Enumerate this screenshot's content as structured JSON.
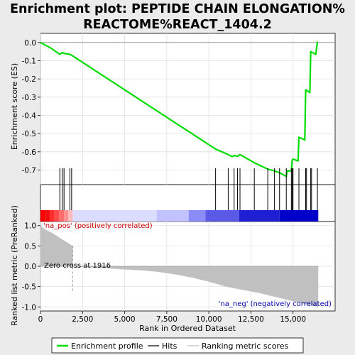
{
  "title_line1": "Enrichment plot: PEPTIDE CHAIN ELONGATION%",
  "title_line2": "REACTOME%REACT_1404.2",
  "chart_data": {
    "type": "line",
    "xlabel": "Rank in Ordered Dataset",
    "top_ylabel": "Enrichment score (ES)",
    "bottom_ylabel": "Ranked list metric (PreRanked)",
    "xlim": [
      0,
      17500
    ],
    "x_ticks": [
      0,
      2500,
      5000,
      7500,
      10000,
      12500,
      15000
    ],
    "x_tick_labels": [
      "0",
      "2,500",
      "5,000",
      "7,500",
      "10,000",
      "12,500",
      "15,000"
    ],
    "es_ylim": [
      -0.78,
      0.05
    ],
    "es_ticks": [
      0.0,
      -0.1,
      -0.2,
      -0.3,
      -0.4,
      -0.5,
      -0.6,
      -0.7
    ],
    "es_tick_labels": [
      "0.0",
      "-0.1",
      "-0.2",
      "-0.3",
      "-0.4",
      "-0.5",
      "-0.6",
      "-0.7"
    ],
    "metric_ylim": [
      -1.1,
      1.1
    ],
    "metric_ticks": [
      1.0,
      0.5,
      0.0,
      -0.5,
      -1.0
    ],
    "metric_tick_labels": [
      "1.0",
      "0.5",
      "0.0",
      "-0.5",
      "-1.0"
    ],
    "n_genes": 16500,
    "zero_cross": 1916,
    "es_curve": [
      [
        0,
        0.0
      ],
      [
        600,
        -0.03
      ],
      [
        1150,
        -0.065
      ],
      [
        1300,
        -0.055
      ],
      [
        1400,
        -0.06
      ],
      [
        1750,
        -0.065
      ],
      [
        1850,
        -0.07
      ],
      [
        10400,
        -0.585
      ],
      [
        11150,
        -0.615
      ],
      [
        11350,
        -0.625
      ],
      [
        11450,
        -0.625
      ],
      [
        11500,
        -0.62
      ],
      [
        11700,
        -0.625
      ],
      [
        11850,
        -0.615
      ],
      [
        12700,
        -0.66
      ],
      [
        13500,
        -0.695
      ],
      [
        13900,
        -0.705
      ],
      [
        14200,
        -0.715
      ],
      [
        14600,
        -0.735
      ],
      [
        14650,
        -0.705
      ],
      [
        14900,
        -0.705
      ],
      [
        14950,
        -0.645
      ],
      [
        15000,
        -0.64
      ],
      [
        15300,
        -0.65
      ],
      [
        15350,
        -0.52
      ],
      [
        15700,
        -0.535
      ],
      [
        15750,
        -0.26
      ],
      [
        16000,
        -0.275
      ],
      [
        16050,
        -0.05
      ],
      [
        16350,
        -0.065
      ],
      [
        16450,
        0.005
      ]
    ],
    "hits": [
      1150,
      1300,
      1400,
      1750,
      1850,
      10400,
      11150,
      11500,
      11700,
      11850,
      12700,
      13500,
      13900,
      14200,
      14600,
      14900,
      14950,
      15000,
      15350,
      15750,
      15800,
      16050,
      16100,
      16450
    ],
    "metric_profile": [
      [
        0,
        1.0
      ],
      [
        300,
        0.9
      ],
      [
        700,
        0.82
      ],
      [
        1000,
        0.74
      ],
      [
        1300,
        0.66
      ],
      [
        1600,
        0.58
      ],
      [
        1916,
        0.5
      ],
      [
        1917,
        0.0
      ],
      [
        2500,
        -0.02
      ],
      [
        3500,
        -0.04
      ],
      [
        5000,
        -0.08
      ],
      [
        6000,
        -0.1
      ],
      [
        7000,
        -0.14
      ],
      [
        8000,
        -0.2
      ],
      [
        9000,
        -0.28
      ],
      [
        10000,
        -0.38
      ],
      [
        11000,
        -0.5
      ],
      [
        12000,
        -0.58
      ],
      [
        13000,
        -0.66
      ],
      [
        14000,
        -0.76
      ],
      [
        15000,
        -0.86
      ],
      [
        15800,
        -0.94
      ],
      [
        16500,
        -1.0
      ]
    ],
    "band_segments": [
      {
        "from": 0,
        "to": 300,
        "color": "#ff0000"
      },
      {
        "from": 300,
        "to": 550,
        "color": "#f20e0e"
      },
      {
        "from": 550,
        "to": 800,
        "color": "#ff2a2a"
      },
      {
        "from": 800,
        "to": 1100,
        "color": "#ff4a4a"
      },
      {
        "from": 1100,
        "to": 1400,
        "color": "#ff6e6e"
      },
      {
        "from": 1400,
        "to": 1650,
        "color": "#ff9090"
      },
      {
        "from": 1650,
        "to": 1916,
        "color": "#ffbcbc"
      },
      {
        "from": 1916,
        "to": 6900,
        "color": "#dcdcff"
      },
      {
        "from": 6900,
        "to": 8800,
        "color": "#c2c2ff"
      },
      {
        "from": 8800,
        "to": 9800,
        "color": "#8c8cf8"
      },
      {
        "from": 9800,
        "to": 11800,
        "color": "#5a5ae6"
      },
      {
        "from": 11800,
        "to": 14200,
        "color": "#1e1ed2"
      },
      {
        "from": 14200,
        "to": 16500,
        "color": "#0000c8"
      }
    ],
    "annotations": {
      "pos_label": "'na_pos' (positively correlated)",
      "neg_label": "'na_neg' (negatively correlated)",
      "zero_label": "Zero cross at 1916"
    },
    "legend": {
      "placement": "bottom",
      "items": [
        {
          "label": "Enrichment profile",
          "color": "#00dd00"
        },
        {
          "label": "Hits",
          "color": "#000000"
        },
        {
          "label": "Ranking metric scores",
          "color": "#c0c0c0"
        }
      ]
    },
    "colors": {
      "es_line": "#00dd00",
      "hits": "#000000",
      "metric_fill": "#c0c0c0",
      "pos_label": "#cc0000",
      "neg_label": "#0000aa"
    }
  }
}
